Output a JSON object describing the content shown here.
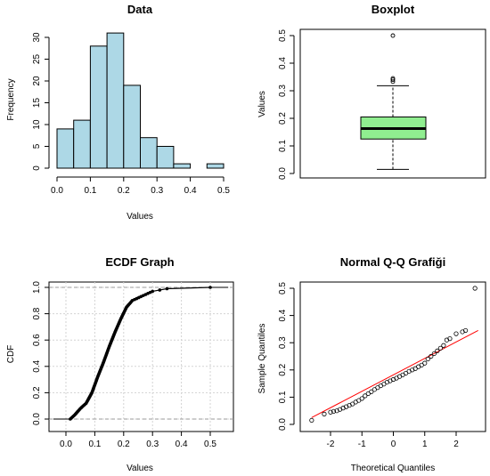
{
  "chart_data": [
    {
      "type": "bar",
      "title": "Data",
      "xlabel": "Values",
      "ylabel": "Frequency",
      "bin_edges": [
        0.0,
        0.05,
        0.1,
        0.15,
        0.2,
        0.25,
        0.3,
        0.35,
        0.4,
        0.45,
        0.5
      ],
      "values": [
        9,
        11,
        28,
        31,
        19,
        7,
        5,
        1,
        0,
        1
      ],
      "xlim": [
        0,
        0.5
      ],
      "ylim": [
        0,
        31
      ],
      "xticks": [
        "0.0",
        "0.1",
        "0.2",
        "0.3",
        "0.4",
        "0.5"
      ],
      "yticks": [
        "0",
        "5",
        "10",
        "15",
        "20",
        "25",
        "30"
      ],
      "fill": "#add8e6"
    },
    {
      "type": "box",
      "title": "Boxplot",
      "ylabel": "Values",
      "whisker_low": 0.015,
      "q1": 0.125,
      "median": 0.163,
      "q3": 0.205,
      "whisker_high": 0.318,
      "outliers": [
        0.333,
        0.34,
        0.345,
        0.5
      ],
      "ylim": [
        0,
        0.5
      ],
      "yticks": [
        "0.0",
        "0.1",
        "0.2",
        "0.3",
        "0.4",
        "0.5"
      ],
      "fill": "#90ee90"
    },
    {
      "type": "line",
      "title": "ECDF Graph",
      "xlabel": "Values",
      "ylabel": "CDF",
      "curve": [
        [
          0.015,
          0.0
        ],
        [
          0.03,
          0.03
        ],
        [
          0.05,
          0.08
        ],
        [
          0.07,
          0.12
        ],
        [
          0.09,
          0.2
        ],
        [
          0.11,
          0.32
        ],
        [
          0.13,
          0.43
        ],
        [
          0.15,
          0.55
        ],
        [
          0.17,
          0.66
        ],
        [
          0.19,
          0.76
        ],
        [
          0.21,
          0.85
        ],
        [
          0.23,
          0.9
        ],
        [
          0.26,
          0.93
        ],
        [
          0.3,
          0.97
        ],
        [
          0.35,
          0.99
        ],
        [
          0.5,
          1.0
        ]
      ],
      "xlim": [
        -0.02,
        0.53
      ],
      "ylim": [
        0,
        1
      ],
      "xticks": [
        "0.0",
        "0.1",
        "0.2",
        "0.3",
        "0.4",
        "0.5"
      ],
      "yticks": [
        "0.0",
        "0.2",
        "0.4",
        "0.6",
        "0.8",
        "1.0"
      ],
      "grid": true
    },
    {
      "type": "scatter",
      "title": "Normal Q-Q Grafiği",
      "xlabel": "Theoretical Quantiles",
      "ylabel": "Sample Quantiles",
      "qq_points": [
        [
          -2.6,
          0.015
        ],
        [
          -2.2,
          0.038
        ],
        [
          -2.0,
          0.045
        ],
        [
          -1.9,
          0.048
        ],
        [
          -1.8,
          0.05
        ],
        [
          -1.7,
          0.055
        ],
        [
          -1.6,
          0.06
        ],
        [
          -1.5,
          0.065
        ],
        [
          -1.4,
          0.07
        ],
        [
          -1.3,
          0.075
        ],
        [
          -1.2,
          0.082
        ],
        [
          -1.1,
          0.088
        ],
        [
          -1.0,
          0.095
        ],
        [
          -0.9,
          0.105
        ],
        [
          -0.8,
          0.113
        ],
        [
          -0.7,
          0.12
        ],
        [
          -0.6,
          0.128
        ],
        [
          -0.5,
          0.135
        ],
        [
          -0.4,
          0.142
        ],
        [
          -0.3,
          0.148
        ],
        [
          -0.2,
          0.155
        ],
        [
          -0.1,
          0.16
        ],
        [
          0.0,
          0.165
        ],
        [
          0.1,
          0.17
        ],
        [
          0.2,
          0.176
        ],
        [
          0.3,
          0.182
        ],
        [
          0.4,
          0.188
        ],
        [
          0.5,
          0.195
        ],
        [
          0.6,
          0.2
        ],
        [
          0.7,
          0.205
        ],
        [
          0.8,
          0.212
        ],
        [
          0.9,
          0.218
        ],
        [
          1.0,
          0.225
        ],
        [
          1.1,
          0.24
        ],
        [
          1.2,
          0.25
        ],
        [
          1.3,
          0.26
        ],
        [
          1.4,
          0.27
        ],
        [
          1.5,
          0.28
        ],
        [
          1.6,
          0.29
        ],
        [
          1.7,
          0.31
        ],
        [
          1.8,
          0.315
        ],
        [
          2.0,
          0.333
        ],
        [
          2.2,
          0.34
        ],
        [
          2.3,
          0.345
        ],
        [
          2.6,
          0.5
        ]
      ],
      "qq_line": [
        [
          -2.6,
          0.025
        ],
        [
          2.7,
          0.345
        ]
      ],
      "xlim": [
        -2.7,
        2.7
      ],
      "ylim": [
        0,
        0.5
      ],
      "xticks": [
        "-2",
        "-1",
        "0",
        "1",
        "2"
      ],
      "yticks": [
        "0.0",
        "0.1",
        "0.2",
        "0.3",
        "0.4",
        "0.5"
      ],
      "line_color": "#ff0000"
    }
  ]
}
